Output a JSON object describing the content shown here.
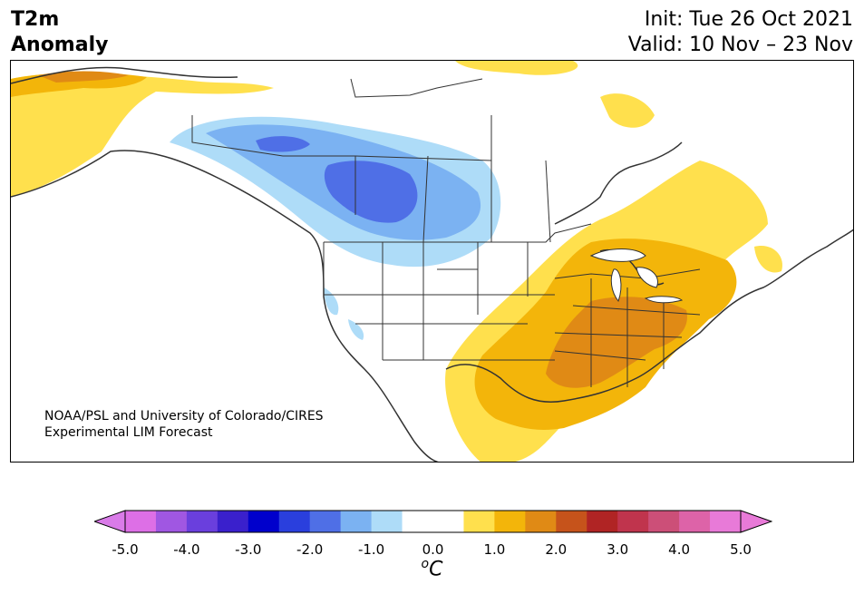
{
  "header": {
    "title_line1": "T2m",
    "title_line2": "Anomaly",
    "init": "Init: Tue 26 Oct 2021",
    "valid": "Valid: 10 Nov – 23 Nov"
  },
  "credit": {
    "line1": "NOAA/PSL and University of Colorado/CIRES",
    "line2": "Experimental LIM Forecast"
  },
  "colorbar": {
    "unit_base": "C",
    "unit_sup": "o",
    "tick_labels": [
      "-5.0",
      "-4.0",
      "-3.0",
      "-2.0",
      "-1.0",
      "0.0",
      "1.0",
      "2.0",
      "3.0",
      "4.0",
      "5.0"
    ],
    "colors": [
      "#dd6fe6",
      "#a057e2",
      "#6a3fdd",
      "#3a20cc",
      "#0000cc",
      "#2a3fdd",
      "#4f6fe6",
      "#7bb2f2",
      "#aedcf8",
      "#ffffff",
      "#ffffff",
      "#ffe04d",
      "#f3b50a",
      "#e08a15",
      "#c6531b",
      "#b02424",
      "#c0344d",
      "#cc4f78",
      "#dd63a8",
      "#e87ad8"
    ],
    "extend_min_color": "#d97be8",
    "extend_max_color": "#e87ad8"
  },
  "map": {
    "anomaly_palette": {
      "light_yellow": "#ffe04d",
      "gold": "#f3b50a",
      "orange": "#e08a15",
      "light_blue": "#aedcf8",
      "medium_blue": "#7bb2f2",
      "blue": "#4f6fe6"
    }
  }
}
